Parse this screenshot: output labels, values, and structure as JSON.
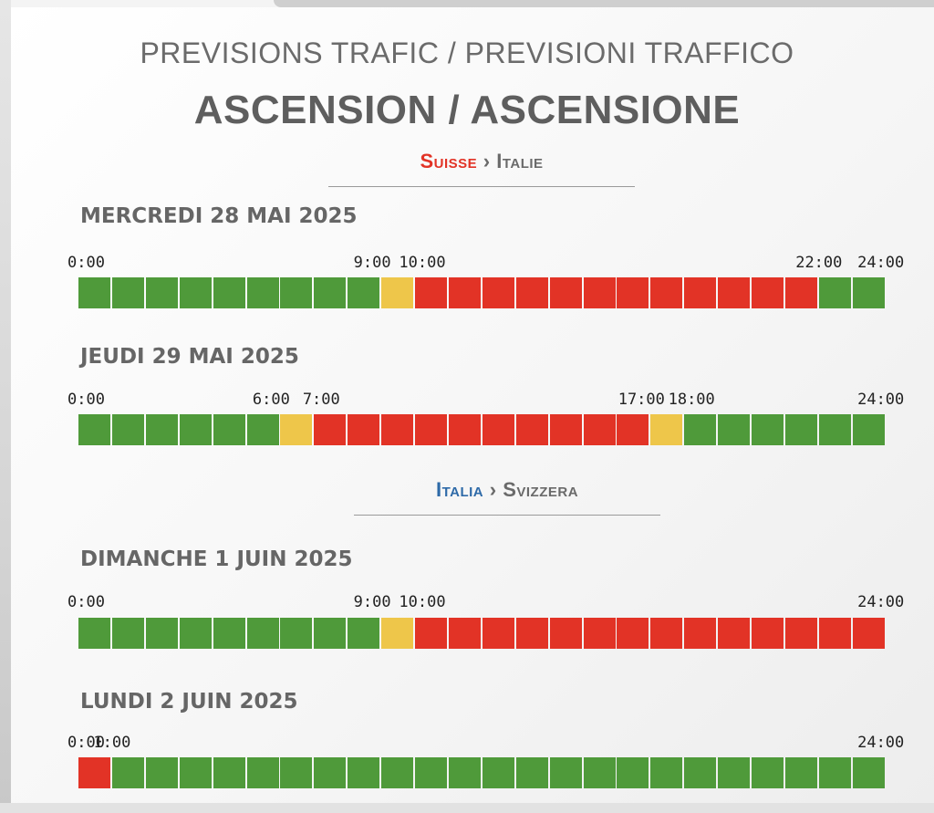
{
  "header": {
    "title": "PREVISIONS TRAFIC / PREVISIONI TRAFFICO",
    "subtitle": "ASCENSION / ASCENSIONE"
  },
  "legend_colors": {
    "fluide": "#4f9a3a",
    "charge": "#eec64a",
    "bouchon": "#e23326"
  },
  "directions": [
    {
      "from": "Suisse",
      "sep": "›",
      "to": "Italie",
      "from_color": "#e23326"
    },
    {
      "from": "Italia",
      "sep": "›",
      "to": "Svizzera",
      "from_color": "#2e6aa8"
    }
  ],
  "days": [
    {
      "label": "MERCREDI 28 MAI 2025",
      "ticks": [
        {
          "hour": 0,
          "text": "0:00"
        },
        {
          "hour": 9,
          "text": "9:00"
        },
        {
          "hour": 10,
          "text": "10:00"
        },
        {
          "hour": 22,
          "text": "22:00"
        },
        {
          "hour": 24,
          "text": "24:00"
        }
      ],
      "hours": [
        "g",
        "g",
        "g",
        "g",
        "g",
        "g",
        "g",
        "g",
        "g",
        "y",
        "r",
        "r",
        "r",
        "r",
        "r",
        "r",
        "r",
        "r",
        "r",
        "r",
        "r",
        "r",
        "g",
        "g"
      ]
    },
    {
      "label": "JEUDI 29 MAI 2025",
      "ticks": [
        {
          "hour": 0,
          "text": "0:00"
        },
        {
          "hour": 6,
          "text": "6:00"
        },
        {
          "hour": 7,
          "text": "7:00"
        },
        {
          "hour": 17,
          "text": "17:00"
        },
        {
          "hour": 18,
          "text": "18:00"
        },
        {
          "hour": 24,
          "text": "24:00"
        }
      ],
      "hours": [
        "g",
        "g",
        "g",
        "g",
        "g",
        "g",
        "y",
        "r",
        "r",
        "r",
        "r",
        "r",
        "r",
        "r",
        "r",
        "r",
        "r",
        "y",
        "g",
        "g",
        "g",
        "g",
        "g",
        "g"
      ]
    },
    {
      "label": "DIMANCHE 1 JUIN 2025",
      "ticks": [
        {
          "hour": 0,
          "text": "0:00"
        },
        {
          "hour": 9,
          "text": "9:00"
        },
        {
          "hour": 10,
          "text": "10:00"
        },
        {
          "hour": 24,
          "text": "24:00"
        }
      ],
      "hours": [
        "g",
        "g",
        "g",
        "g",
        "g",
        "g",
        "g",
        "g",
        "g",
        "y",
        "r",
        "r",
        "r",
        "r",
        "r",
        "r",
        "r",
        "r",
        "r",
        "r",
        "r",
        "r",
        "r",
        "r"
      ]
    },
    {
      "label": "LUNDI 2 JUIN 2025",
      "ticks": [
        {
          "hour": 0,
          "text": "0:00"
        },
        {
          "hour": 1,
          "text": "1:00"
        },
        {
          "hour": 24,
          "text": "24:00"
        }
      ],
      "hours": [
        "r",
        "g",
        "g",
        "g",
        "g",
        "g",
        "g",
        "g",
        "g",
        "g",
        "g",
        "g",
        "g",
        "g",
        "g",
        "g",
        "g",
        "g",
        "g",
        "g",
        "g",
        "g",
        "g",
        "g"
      ]
    }
  ]
}
